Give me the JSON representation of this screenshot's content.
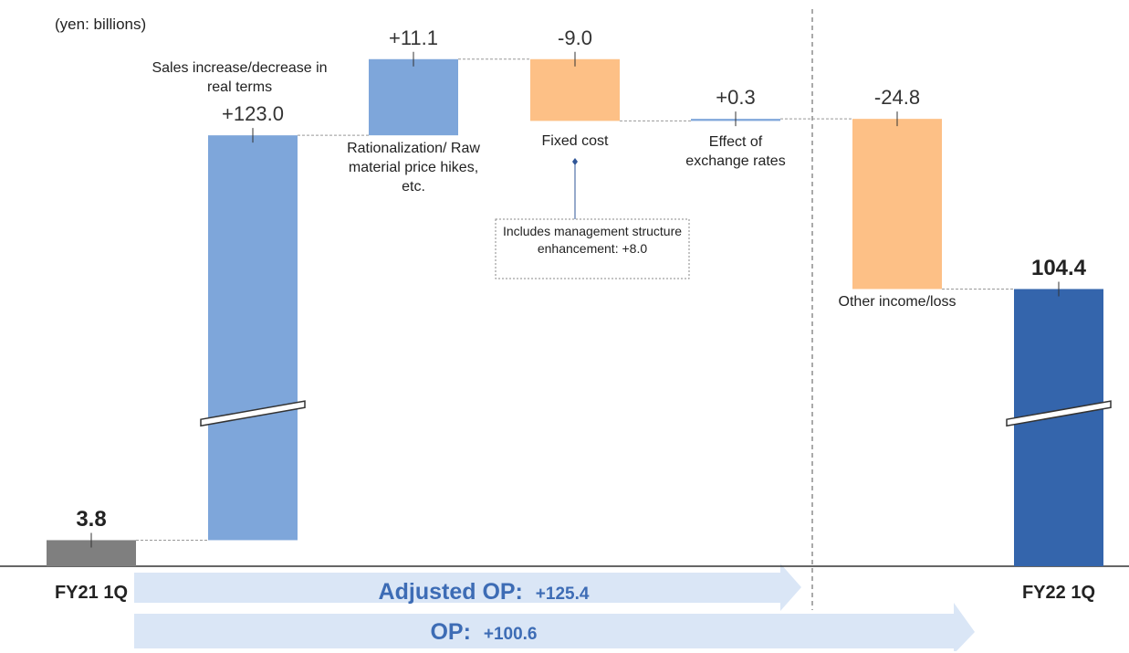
{
  "chart_data": {
    "type": "waterfall",
    "unit_label": "(yen: billions)",
    "categories": [
      "FY21 1Q",
      "Sales increase/decrease in real terms",
      "Rationalization/ Raw material price hikes, etc.",
      "Fixed cost",
      "Effect of exchange rates",
      "Other income/loss",
      "FY22 1Q"
    ],
    "values": [
      3.8,
      123.0,
      11.1,
      -9.0,
      0.3,
      -24.8,
      104.4
    ],
    "value_labels": [
      "3.8",
      "+123.0",
      "+11.1",
      "-9.0",
      "+0.3",
      "-24.8",
      "104.4"
    ],
    "colors": [
      "#7f7f7f",
      "#7ea6da",
      "#7ea6da",
      "#fdc086",
      "#7ea6da",
      "#fdc086",
      "#3465ac"
    ],
    "ylim": [
      0,
      140
    ],
    "y_break": [
      23,
      87
    ],
    "annotation": "Includes management structure enhancement: +8.0",
    "arrows": [
      {
        "label": "Adjusted OP:",
        "value_label": "+125.4"
      },
      {
        "label": "OP:",
        "value_label": "+100.6"
      }
    ]
  }
}
